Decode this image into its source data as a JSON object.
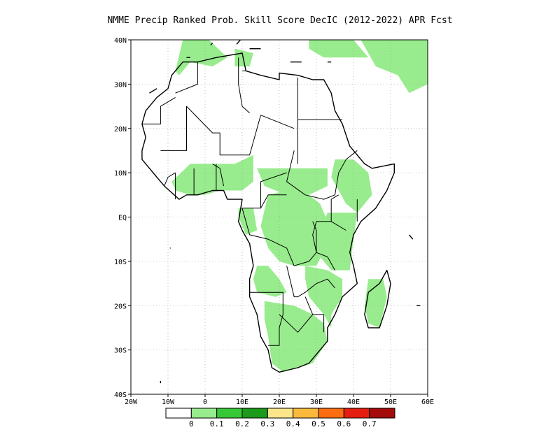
{
  "title": "NMME Precip Ranked Prob. Skill Score DecIC (2012-2022) APR Fcst",
  "map": {
    "lon_range": [
      -20,
      60
    ],
    "lat_range": [
      -40,
      40
    ],
    "lon_ticks": [
      {
        "value": -20,
        "label": "20W"
      },
      {
        "value": -10,
        "label": "10W"
      },
      {
        "value": 0,
        "label": "0"
      },
      {
        "value": 10,
        "label": "10E"
      },
      {
        "value": 20,
        "label": "20E"
      },
      {
        "value": 30,
        "label": "30E"
      },
      {
        "value": 40,
        "label": "40E"
      },
      {
        "value": 50,
        "label": "50E"
      },
      {
        "value": 60,
        "label": "60E"
      }
    ],
    "lat_ticks": [
      {
        "value": 40,
        "label": "40N"
      },
      {
        "value": 30,
        "label": "30N"
      },
      {
        "value": 20,
        "label": "20N"
      },
      {
        "value": 10,
        "label": "10N"
      },
      {
        "value": 0,
        "label": "EQ"
      },
      {
        "value": -10,
        "label": "10S"
      },
      {
        "value": -20,
        "label": "20S"
      },
      {
        "value": -30,
        "label": "30S"
      },
      {
        "value": -40,
        "label": "40S"
      }
    ],
    "grid_lines": true,
    "land_color": "#ffffff",
    "skill_fill_color": "#98ec8d"
  },
  "colorbar": {
    "colors": [
      "#ffffff",
      "#98ec8d",
      "#37c837",
      "#1b9a1b",
      "#fbe68c",
      "#fbb93c",
      "#fb6d10",
      "#e61e10",
      "#a50b0b"
    ],
    "labels": [
      "0",
      "0.1",
      "0.2",
      "0.3",
      "0.4",
      "0.5",
      "0.6",
      "0.7"
    ]
  },
  "coastline": [
    [
      -17,
      21
    ],
    [
      -16,
      24
    ],
    [
      -13,
      27
    ],
    [
      -10,
      29
    ],
    [
      -9,
      32
    ],
    [
      -6,
      35
    ],
    [
      -2,
      35
    ],
    [
      3,
      36
    ],
    [
      10,
      37
    ],
    [
      11,
      33
    ],
    [
      15,
      32
    ],
    [
      20,
      31
    ],
    [
      20,
      32.5
    ],
    [
      25,
      32
    ],
    [
      29,
      31
    ],
    [
      32,
      31
    ],
    [
      34,
      28
    ],
    [
      35,
      24
    ],
    [
      37,
      21
    ],
    [
      39,
      16
    ],
    [
      43,
      12
    ],
    [
      45,
      11
    ],
    [
      51,
      12
    ],
    [
      51,
      10
    ],
    [
      49,
      6
    ],
    [
      46,
      2
    ],
    [
      42,
      -1
    ],
    [
      40,
      -4
    ],
    [
      39,
      -8
    ],
    [
      40,
      -11
    ],
    [
      41,
      -15
    ],
    [
      37,
      -18
    ],
    [
      35,
      -22
    ],
    [
      33,
      -25
    ],
    [
      33,
      -28
    ],
    [
      31,
      -30
    ],
    [
      28,
      -33
    ],
    [
      25,
      -34
    ],
    [
      20,
      -35
    ],
    [
      18,
      -34
    ],
    [
      17,
      -30
    ],
    [
      15,
      -27
    ],
    [
      14,
      -22
    ],
    [
      12,
      -18
    ],
    [
      12,
      -14
    ],
    [
      13,
      -11
    ],
    [
      12,
      -6
    ],
    [
      10,
      -3
    ],
    [
      9,
      -1
    ],
    [
      10,
      4
    ],
    [
      9,
      4
    ],
    [
      6,
      4
    ],
    [
      5,
      6
    ],
    [
      2,
      6
    ],
    [
      -2,
      5
    ],
    [
      -5,
      5
    ],
    [
      -7,
      4
    ],
    [
      -11,
      7
    ],
    [
      -13,
      9
    ],
    [
      -15,
      11
    ],
    [
      -17,
      13
    ],
    [
      -17,
      15
    ],
    [
      -16,
      18
    ],
    [
      -17,
      21
    ]
  ],
  "madagascar": [
    [
      49,
      -12
    ],
    [
      50,
      -15
    ],
    [
      49,
      -20
    ],
    [
      47,
      -25
    ],
    [
      44,
      -25
    ],
    [
      43,
      -22
    ],
    [
      44,
      -17
    ],
    [
      47,
      -15
    ]
  ],
  "borders": [
    [
      [
        -8,
        28
      ],
      [
        -2,
        30
      ],
      [
        -2,
        35
      ]
    ],
    [
      [
        9,
        36
      ],
      [
        9,
        30
      ],
      [
        10,
        25
      ],
      [
        12,
        23.5
      ]
    ],
    [
      [
        10,
        33
      ],
      [
        11,
        33
      ]
    ],
    [
      [
        25,
        31.5
      ],
      [
        25,
        20
      ],
      [
        25,
        12
      ]
    ],
    [
      [
        25,
        22
      ],
      [
        31,
        22
      ],
      [
        37,
        22
      ]
    ],
    [
      [
        -17,
        21
      ],
      [
        -12,
        21
      ],
      [
        -12,
        25
      ],
      [
        -8,
        27
      ]
    ],
    [
      [
        -12,
        15
      ],
      [
        -5,
        15
      ],
      [
        -5,
        25
      ],
      [
        2,
        19
      ],
      [
        4,
        19
      ]
    ],
    [
      [
        4,
        19
      ],
      [
        4,
        14
      ],
      [
        12,
        14
      ],
      [
        15,
        23
      ]
    ],
    [
      [
        15,
        23
      ],
      [
        24,
        20
      ]
    ],
    [
      [
        24,
        15
      ],
      [
        22,
        8
      ],
      [
        27,
        5
      ],
      [
        32,
        4
      ],
      [
        35,
        5
      ],
      [
        36,
        10
      ],
      [
        38,
        13
      ],
      [
        41,
        15
      ]
    ],
    [
      [
        22,
        10
      ],
      [
        15,
        8
      ],
      [
        15,
        2
      ],
      [
        17,
        5
      ],
      [
        22,
        5
      ]
    ],
    [
      [
        2,
        12
      ],
      [
        4,
        11
      ],
      [
        5,
        7
      ]
    ],
    [
      [
        3,
        6
      ],
      [
        3,
        12
      ]
    ],
    [
      [
        -3,
        5
      ],
      [
        -3,
        11
      ]
    ],
    [
      [
        -8,
        4
      ],
      [
        -8,
        10
      ]
    ],
    [
      [
        -11,
        7
      ],
      [
        -10,
        9
      ],
      [
        -8,
        10
      ]
    ],
    [
      [
        15,
        2
      ],
      [
        10,
        2
      ],
      [
        12,
        -4
      ],
      [
        17,
        -5
      ],
      [
        22,
        -7
      ],
      [
        24,
        -11
      ],
      [
        28,
        -10
      ],
      [
        30,
        -8
      ],
      [
        29,
        -4
      ],
      [
        30,
        -1
      ]
    ],
    [
      [
        34,
        -1
      ],
      [
        38,
        -3
      ]
    ],
    [
      [
        30,
        -1
      ],
      [
        34,
        -1
      ],
      [
        34,
        4
      ],
      [
        36,
        5
      ]
    ],
    [
      [
        41,
        4
      ],
      [
        41,
        -1
      ]
    ],
    [
      [
        29,
        -1
      ],
      [
        30,
        -3
      ],
      [
        30,
        -8
      ],
      [
        33,
        -9
      ],
      [
        35,
        -12
      ]
    ],
    [
      [
        22,
        -11
      ],
      [
        24,
        -18
      ],
      [
        25,
        -18
      ],
      [
        27,
        -17
      ],
      [
        30,
        -15
      ],
      [
        33,
        -14
      ],
      [
        35,
        -16
      ]
    ],
    [
      [
        12,
        -17
      ],
      [
        21,
        -17
      ],
      [
        21,
        -22
      ],
      [
        20,
        -25
      ],
      [
        20,
        -29
      ],
      [
        17,
        -29
      ]
    ],
    [
      [
        20,
        -22
      ],
      [
        25,
        -26
      ],
      [
        29,
        -22
      ],
      [
        32,
        -22
      ]
    ],
    [
      [
        29,
        -22
      ],
      [
        27,
        -18
      ]
    ],
    [
      [
        32,
        -26
      ],
      [
        32,
        -22
      ]
    ]
  ],
  "islands": [
    [
      [
        -5,
        36
      ],
      [
        -4,
        36
      ]
    ],
    [
      [
        1.5,
        38.8
      ],
      [
        2,
        39.3
      ]
    ],
    [
      [
        8.5,
        39
      ],
      [
        9.5,
        40
      ]
    ],
    [
      [
        12,
        38
      ],
      [
        15,
        38
      ]
    ],
    [
      [
        23,
        35
      ],
      [
        26,
        35
      ]
    ],
    [
      [
        33,
        35
      ],
      [
        34,
        35
      ]
    ],
    [
      [
        -15,
        28
      ],
      [
        -13,
        29
      ]
    ],
    [
      [
        -23,
        15
      ],
      [
        -22,
        16
      ]
    ],
    [
      [
        -9.5,
        -7
      ],
      [
        -9.3,
        -7
      ]
    ],
    [
      [
        55,
        -4
      ],
      [
        56,
        -5
      ]
    ],
    [
      [
        57,
        -20
      ],
      [
        58,
        -20
      ]
    ],
    [
      [
        -12,
        -37
      ],
      [
        -12,
        -37.5
      ]
    ]
  ],
  "skill_regions": [
    [
      [
        -6,
        40
      ],
      [
        1,
        40
      ],
      [
        6,
        36
      ],
      [
        2,
        34
      ],
      [
        -4,
        35
      ],
      [
        -7,
        32
      ],
      [
        -8,
        33
      ]
    ],
    [
      [
        8,
        38
      ],
      [
        13,
        37
      ],
      [
        12,
        34
      ],
      [
        8,
        34
      ]
    ],
    [
      [
        28,
        40
      ],
      [
        40,
        40
      ],
      [
        44,
        36
      ],
      [
        32,
        36
      ],
      [
        28,
        38
      ]
    ],
    [
      [
        42,
        40
      ],
      [
        60,
        40
      ],
      [
        60,
        30
      ],
      [
        55,
        28
      ],
      [
        52,
        32
      ],
      [
        46,
        34
      ]
    ],
    [
      [
        -4,
        12
      ],
      [
        4,
        12
      ],
      [
        8,
        12
      ],
      [
        13,
        14
      ],
      [
        13,
        8
      ],
      [
        10,
        6
      ],
      [
        4,
        6
      ],
      [
        0,
        5
      ],
      [
        -4,
        5
      ],
      [
        -8,
        6
      ],
      [
        -9,
        8
      ]
    ],
    [
      [
        14,
        11
      ],
      [
        18,
        11
      ],
      [
        24,
        11
      ],
      [
        28,
        11
      ],
      [
        33,
        11
      ],
      [
        33,
        7
      ],
      [
        28,
        5
      ],
      [
        22,
        5
      ],
      [
        16,
        7
      ]
    ],
    [
      [
        35,
        13
      ],
      [
        40,
        13
      ],
      [
        44,
        10
      ],
      [
        45,
        5
      ],
      [
        41,
        1
      ],
      [
        38,
        3
      ],
      [
        36,
        6
      ],
      [
        34,
        9
      ]
    ],
    [
      [
        17,
        5
      ],
      [
        22,
        6
      ],
      [
        28,
        5
      ],
      [
        31,
        3
      ],
      [
        33,
        -1
      ],
      [
        33,
        -6
      ],
      [
        30,
        -11
      ],
      [
        24,
        -11
      ],
      [
        20,
        -10
      ],
      [
        17,
        -7
      ],
      [
        15,
        -2
      ]
    ],
    [
      [
        9,
        2
      ],
      [
        13,
        2
      ],
      [
        14,
        -3
      ],
      [
        11,
        -4
      ],
      [
        9,
        0
      ]
    ],
    [
      [
        33,
        1
      ],
      [
        41,
        1
      ],
      [
        40,
        -5
      ],
      [
        39,
        -12
      ],
      [
        34,
        -12
      ],
      [
        31,
        -9
      ],
      [
        31,
        -3
      ]
    ],
    [
      [
        14,
        -11
      ],
      [
        17,
        -11
      ],
      [
        20,
        -14
      ],
      [
        22,
        -17
      ],
      [
        19,
        -18
      ],
      [
        14,
        -17
      ],
      [
        13,
        -14
      ]
    ],
    [
      [
        27,
        -11
      ],
      [
        33,
        -12
      ],
      [
        37,
        -14
      ],
      [
        37,
        -18
      ],
      [
        34,
        -22
      ],
      [
        34,
        -25
      ],
      [
        32,
        -22
      ],
      [
        28,
        -18
      ],
      [
        27,
        -14
      ]
    ],
    [
      [
        16,
        -19
      ],
      [
        24,
        -20
      ],
      [
        29,
        -22
      ],
      [
        32,
        -24
      ],
      [
        33,
        -28
      ],
      [
        29,
        -33
      ],
      [
        21,
        -35
      ],
      [
        18,
        -33
      ],
      [
        17,
        -27
      ],
      [
        16,
        -23
      ]
    ],
    [
      [
        44,
        -14
      ],
      [
        48,
        -14
      ],
      [
        49,
        -18
      ],
      [
        47,
        -25
      ],
      [
        44,
        -24
      ],
      [
        43,
        -20
      ]
    ]
  ]
}
